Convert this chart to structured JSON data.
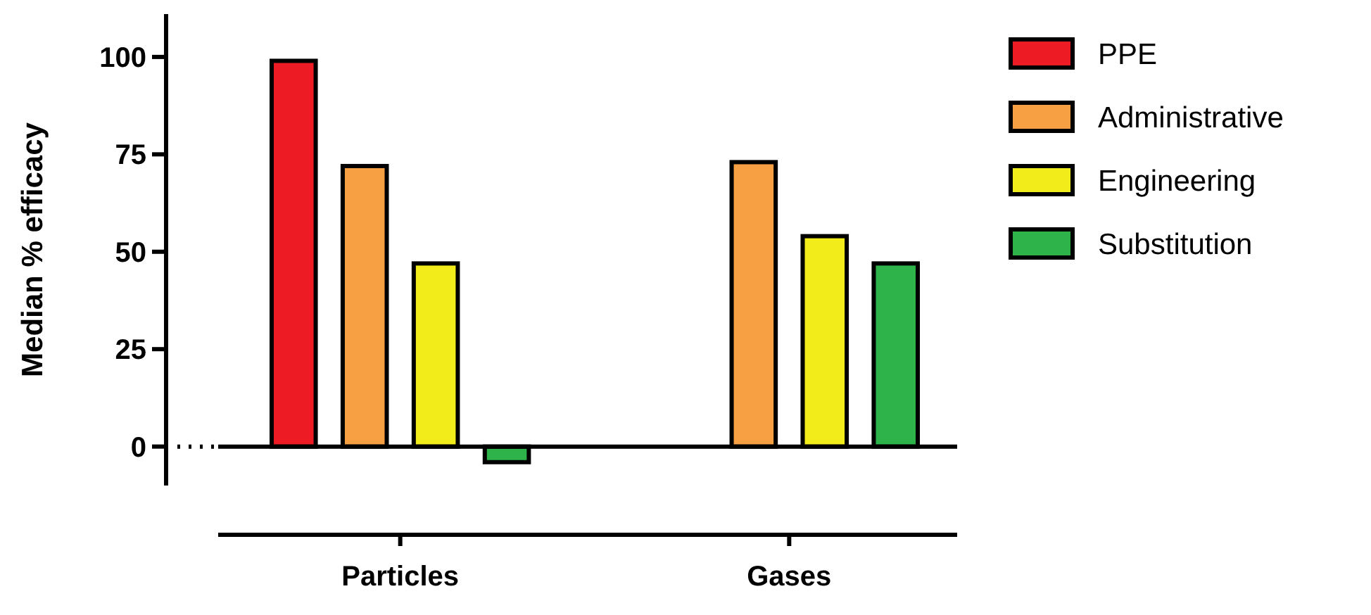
{
  "chart_data": {
    "type": "bar",
    "ylabel": "Median % efficacy",
    "categories": [
      "Particles",
      "Gases"
    ],
    "series": [
      {
        "name": "PPE",
        "color": "#ed1c24",
        "values": [
          99,
          null
        ]
      },
      {
        "name": "Administrative",
        "color": "#f7a043",
        "values": [
          72,
          73
        ]
      },
      {
        "name": "Engineering",
        "color": "#f2ec1a",
        "values": [
          47,
          54
        ]
      },
      {
        "name": "Substitution",
        "color": "#2eb34a",
        "values": [
          -4,
          47
        ]
      }
    ],
    "ylim": [
      -10,
      111
    ],
    "yticks": [
      0,
      25,
      50,
      75,
      100
    ],
    "ref_lines": [
      {
        "axis": "y",
        "value": 0
      }
    ],
    "legend": "right",
    "grid": false
  }
}
